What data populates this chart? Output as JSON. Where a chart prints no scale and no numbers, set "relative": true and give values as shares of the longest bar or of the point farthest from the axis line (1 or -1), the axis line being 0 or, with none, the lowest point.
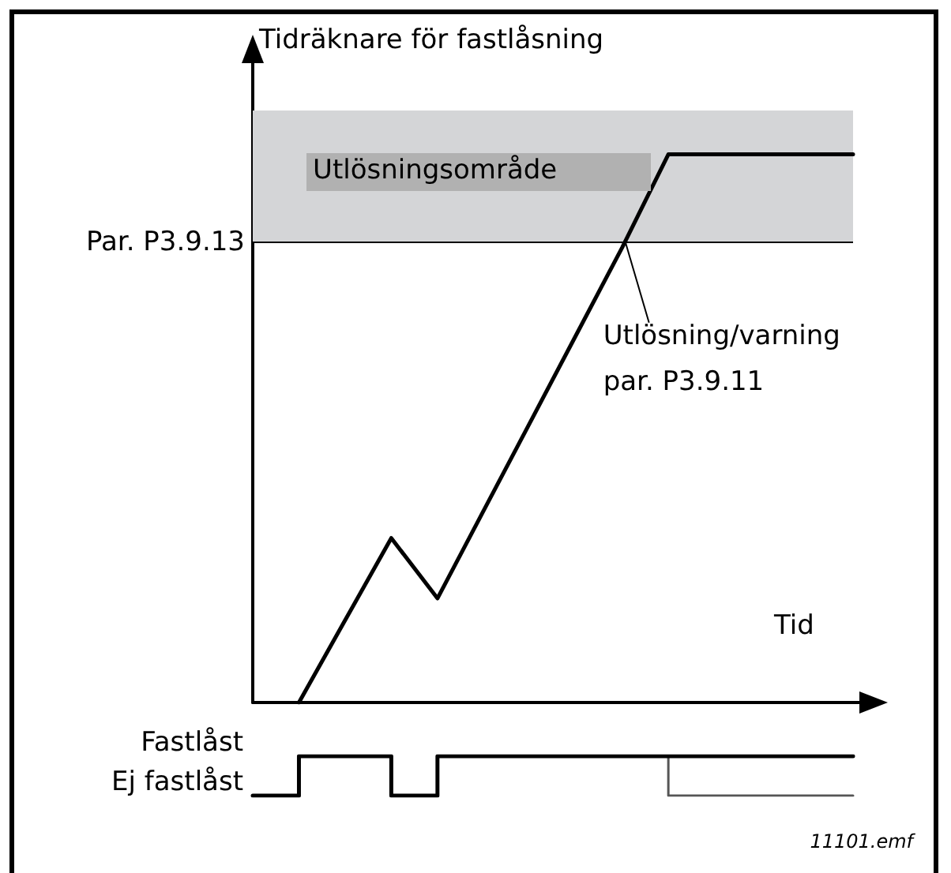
{
  "chart_data": [
    {
      "type": "line",
      "relative": true,
      "ylabel": "Tidräknare för fastlåsning",
      "xlabel": "Tid",
      "categories": [
        null,
        null,
        null,
        null,
        null,
        null,
        null,
        null,
        null,
        null,
        null,
        null,
        null,
        null
      ],
      "series": [
        {
          "color": "#000000",
          "values": [
            null,
            0,
            0.15,
            0.3,
            0.19,
            0.35,
            0.51,
            0.67,
            0.83,
            1,
            1,
            1,
            1,
            1
          ]
        }
      ],
      "bands": [
        {
          "axis": "y",
          "from": 0.84,
          "to": 1.08,
          "label": "Utlösningsområde",
          "color": "#d4d5d7"
        }
      ],
      "ref_lines": [
        {
          "axis": "y",
          "value": 0.84,
          "label": "Par. P3.9.13",
          "color": "#000000"
        }
      ],
      "annotations": [
        "Utlösning/varning\npar. P3.9.11"
      ],
      "marker": "none",
      "line_style": "solid"
    },
    {
      "type": "step",
      "relative": true,
      "categories": [
        null,
        null,
        null,
        null,
        null,
        null,
        null,
        null,
        null,
        null,
        null,
        null,
        null,
        null
      ],
      "series": [
        {
          "color": "#000000",
          "values": [
            0,
            1,
            1,
            0,
            1,
            1,
            1,
            1,
            1,
            1,
            1,
            1,
            1,
            1
          ]
        },
        {
          "color": "#555555",
          "values": [
            null,
            null,
            null,
            null,
            null,
            null,
            null,
            null,
            1,
            0,
            0,
            0,
            0,
            0
          ]
        }
      ],
      "annotations": [
        "Fastlåst",
        "Ej fastlåst",
        "11101.emf"
      ],
      "marker": "none",
      "line_style": "solid"
    }
  ]
}
